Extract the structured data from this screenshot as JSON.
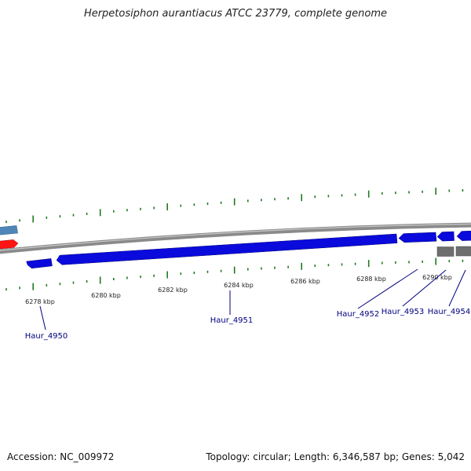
{
  "title": "Herpetosiphon aurantiacus ATCC 23779, complete genome",
  "accession_label": "Accession:",
  "accession": "NC_009972",
  "topology_label": "Topology:",
  "topology": "circular",
  "length_label": "Length:",
  "length": "6,346,587 bp",
  "genes_label": "Genes:",
  "genes": "5,042",
  "colors": {
    "backbone": "#8a8a8a",
    "forward_gene": "#0a0adc",
    "other_gene": "#6e6e6e",
    "steelblue_feature": "#4f86b8",
    "red_feature": "#ff1414",
    "tick": "#1f7a1f",
    "label": "#00007f"
  },
  "scale_labels": [
    {
      "kbp": 6278,
      "text": "6278 kbp"
    },
    {
      "kbp": 6280,
      "text": "6280 kbp"
    },
    {
      "kbp": 6282,
      "text": "6282 kbp"
    },
    {
      "kbp": 6284,
      "text": "6284 kbp"
    },
    {
      "kbp": 6286,
      "text": "6286 kbp"
    },
    {
      "kbp": 6288,
      "text": "6288 kbp"
    },
    {
      "kbp": 6290,
      "text": "6290 kbp"
    }
  ],
  "gene_labels": [
    {
      "name": "Haur_4950"
    },
    {
      "name": "Haur_4951"
    },
    {
      "name": "Haur_4952"
    },
    {
      "name": "Haur_4953"
    },
    {
      "name": "Haur_4954"
    }
  ]
}
